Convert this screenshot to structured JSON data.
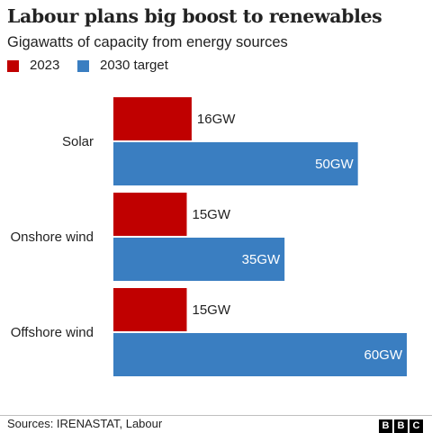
{
  "title": "Labour plans big boost to renewables",
  "subtitle": "Gigawatts of capacity from energy sources",
  "colors": {
    "y2023": "#c00000",
    "target2030": "#3a7ec1"
  },
  "chart_data": {
    "type": "bar",
    "orientation": "horizontal",
    "categories": [
      "Solar",
      "Onshore wind",
      "Offshore wind"
    ],
    "series": [
      {
        "name": "2023",
        "values": [
          16,
          15,
          15
        ],
        "labels": [
          "16GW",
          "15GW",
          "15GW"
        ],
        "color": "#c00000"
      },
      {
        "name": "2030 target",
        "values": [
          50,
          35,
          60
        ],
        "labels": [
          "50GW",
          "35GW",
          "60GW"
        ],
        "color": "#3a7ec1"
      }
    ],
    "xlim": [
      0,
      60
    ],
    "grid": false,
    "legend_position": "top-left"
  },
  "footer": {
    "source": "Sources: IRENASTAT, Labour",
    "logo_letters": [
      "B",
      "B",
      "C"
    ]
  }
}
